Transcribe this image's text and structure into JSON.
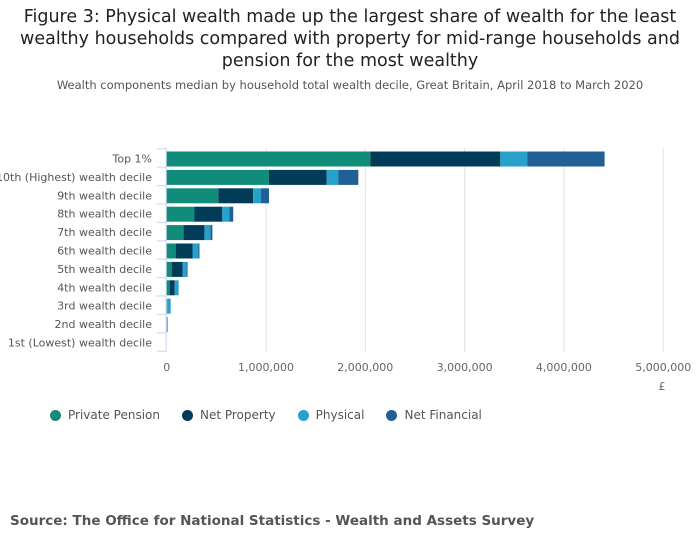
{
  "title": "Figure 3: Physical wealth made up the largest share of wealth for the least wealthy households compared with property for mid-range households and pension for the most wealthy",
  "subtitle": "Wealth components median by household total wealth decile, Great Britain, April 2018 to March 2020",
  "source": "Source: The Office for National Statistics - Wealth and Assets Survey",
  "chart_data": {
    "type": "bar",
    "orientation": "horizontal",
    "stacked": true,
    "categories": [
      "Top 1%",
      "10th (Highest) wealth decile",
      "9th wealth decile",
      "8th wealth decile",
      "7th wealth decile",
      "6th wealth decile",
      "5th wealth decile",
      "4th wealth decile",
      "3rd wealth decile",
      "2nd wealth decile",
      "1st (Lowest) wealth decile"
    ],
    "series": [
      {
        "name": "Private Pension",
        "color": "#118c7b",
        "values": [
          2050000,
          1030000,
          520000,
          280000,
          170000,
          90000,
          50000,
          30000,
          5000,
          0,
          0
        ]
      },
      {
        "name": "Net Property",
        "color": "#003c57",
        "values": [
          1310000,
          580000,
          350000,
          280000,
          210000,
          170000,
          110000,
          50000,
          0,
          0,
          0
        ]
      },
      {
        "name": "Physical",
        "color": "#27a0cc",
        "values": [
          270000,
          120000,
          80000,
          70000,
          60000,
          60000,
          40000,
          40000,
          35000,
          10000,
          0
        ]
      },
      {
        "name": "Net Financial",
        "color": "#206095",
        "values": [
          780000,
          200000,
          80000,
          40000,
          20000,
          10000,
          10000,
          0,
          0,
          0,
          0
        ]
      }
    ],
    "xlim": [
      0,
      5000000
    ],
    "xticks": [
      "0",
      "1,000,000",
      "2,000,000",
      "3,000,000",
      "4,000,000",
      "5,000,000"
    ],
    "xlabel": "£",
    "grid": true,
    "legend": "bottom-left"
  }
}
